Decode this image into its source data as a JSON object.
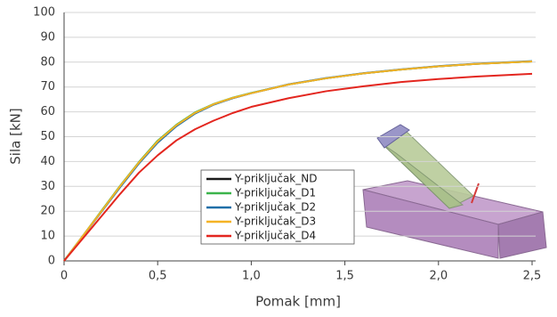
{
  "chart_data": {
    "type": "line",
    "x_label": "Pomak [mm]",
    "y_label": "Sila [kN]",
    "x": [
      0,
      0.1,
      0.2,
      0.3,
      0.4,
      0.5,
      0.6,
      0.7,
      0.8,
      0.9,
      1.0,
      1.2,
      1.4,
      1.6,
      1.8,
      2.0,
      2.2,
      2.5
    ],
    "series": [
      {
        "name": "Y-priključak_ND",
        "color": "#1a1a1a",
        "values": [
          0,
          10,
          20,
          30,
          39.5,
          48,
          54.5,
          59.5,
          63,
          65.5,
          67.5,
          71,
          73.5,
          75.5,
          77,
          78.3,
          79.3,
          80.3
        ]
      },
      {
        "name": "Y-priključak_D1",
        "color": "#3cb44b",
        "values": [
          0,
          10,
          20.2,
          30.3,
          39.8,
          48.4,
          54.8,
          59.8,
          63.2,
          65.7,
          67.6,
          71,
          73.5,
          75.5,
          77,
          78.3,
          79.3,
          80.3
        ]
      },
      {
        "name": "Y-priključak_D2",
        "color": "#1f6fa8",
        "values": [
          0,
          9.9,
          19.8,
          29.7,
          39.2,
          47.6,
          54.2,
          59.3,
          62.9,
          65.5,
          67.5,
          71.1,
          73.6,
          75.6,
          77.1,
          78.4,
          79.4,
          80.4
        ]
      },
      {
        "name": "Y-priključak_D3",
        "color": "#f5b325",
        "values": [
          0,
          10,
          20,
          30.1,
          39.6,
          48.1,
          54.6,
          59.6,
          63.1,
          65.6,
          67.5,
          71,
          73.5,
          75.5,
          77,
          78.3,
          79.3,
          80.3
        ]
      },
      {
        "name": "Y-priključak_D4",
        "color": "#e3261f",
        "values": [
          0,
          9,
          18,
          27,
          35.5,
          42.5,
          48.5,
          53,
          56.5,
          59.5,
          62,
          65.5,
          68.3,
          70.3,
          72,
          73.2,
          74.2,
          75.3
        ]
      }
    ],
    "xlim": [
      0,
      2.5
    ],
    "ylim": [
      0,
      100
    ],
    "xticks": [
      0,
      {
        "value": 0.5,
        "label": "0,5"
      },
      {
        "value": 1.0,
        "label": "1,0"
      },
      {
        "value": 1.5,
        "label": "1,5"
      },
      {
        "value": 2.0,
        "label": "2,0"
      },
      {
        "value": 2.5,
        "label": "2,5"
      }
    ],
    "yticks": [
      0,
      10,
      20,
      30,
      40,
      50,
      60,
      70,
      80,
      90,
      100
    ],
    "grid": true
  }
}
